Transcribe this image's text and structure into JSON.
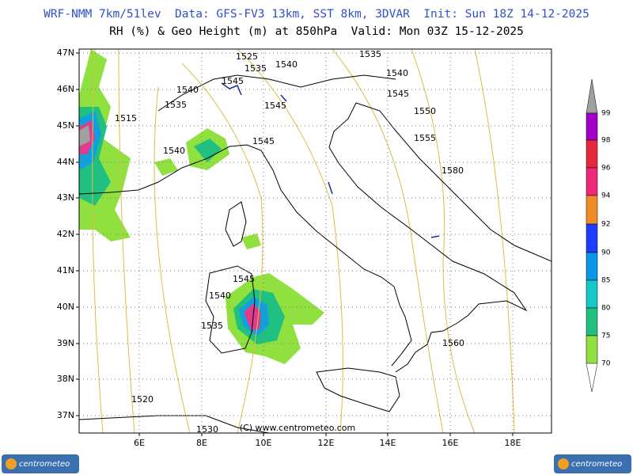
{
  "header": {
    "model_line": "WRF-NMM 7km/51lev  Data: GFS-FV3 13km, SST 8km, 3DVAR  Init: Sun 18Z 14-12-2025",
    "field_line": "RH (%) & Geo Height (m) at 850hPa  Valid: Mon 03Z 15-12-2025"
  },
  "map": {
    "lat_labels": [
      "47N",
      "46N",
      "45N",
      "44N",
      "43N",
      "42N",
      "41N",
      "40N",
      "39N",
      "38N",
      "37N"
    ],
    "lon_labels": [
      "6E",
      "8E",
      "10E",
      "12E",
      "14E",
      "16E",
      "18E"
    ],
    "contour_labels": [
      "1525",
      "1535",
      "1540",
      "1535",
      "1540",
      "1545",
      "1540",
      "1545",
      "1545",
      "1535",
      "1550",
      "1515",
      "1555",
      "1545",
      "1540",
      "1580",
      "1545",
      "1540",
      "1535",
      "1560",
      "1520",
      "1530"
    ]
  },
  "colorbar": {
    "labels": [
      "99",
      "98",
      "96",
      "94",
      "92",
      "90",
      "85",
      "80",
      "75",
      "70"
    ],
    "colors": [
      "#a000c8",
      "#e6283c",
      "#f02878",
      "#f08c28",
      "#1e3cff",
      "#0a96e6",
      "#14c8c8",
      "#20c080",
      "#90e040"
    ]
  },
  "footer": {
    "copyright": "(C) www.centrometeo.com",
    "logo_left": "centrometeo",
    "logo_right": "centrometeo"
  }
}
